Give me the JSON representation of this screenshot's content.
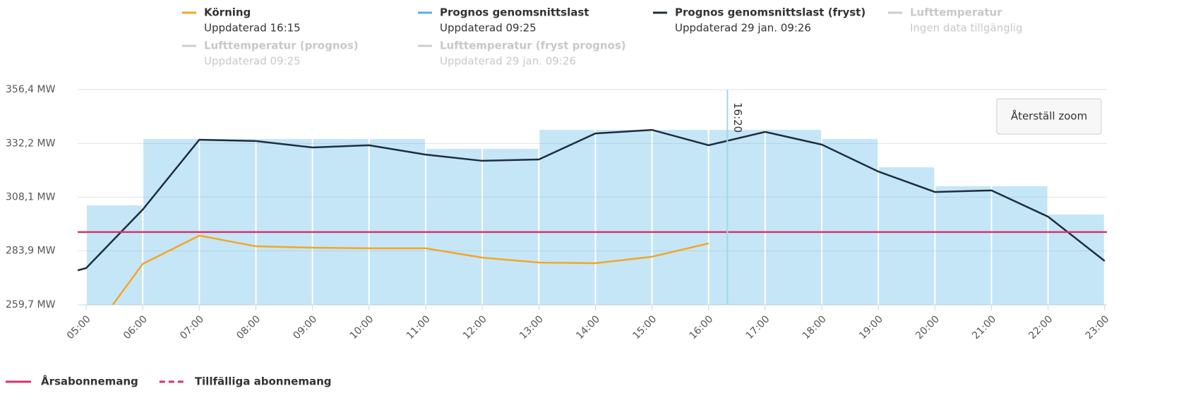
{
  "chart_data": {
    "type": "line",
    "xlim": [
      4.85,
      23.04
    ],
    "xticks": [
      {
        "value": 5,
        "label": "05:00"
      },
      {
        "value": 6,
        "label": "06:00"
      },
      {
        "value": 7,
        "label": "07:00"
      },
      {
        "value": 8,
        "label": "08:00"
      },
      {
        "value": 9,
        "label": "09:00"
      },
      {
        "value": 10,
        "label": "10:00"
      },
      {
        "value": 11,
        "label": "11:00"
      },
      {
        "value": 12,
        "label": "12:00"
      },
      {
        "value": 13,
        "label": "13:00"
      },
      {
        "value": 14,
        "label": "14:00"
      },
      {
        "value": 15,
        "label": "15:00"
      },
      {
        "value": 16,
        "label": "16:00"
      },
      {
        "value": 17,
        "label": "17:00"
      },
      {
        "value": 18,
        "label": "18:00"
      },
      {
        "value": 19,
        "label": "19:00"
      },
      {
        "value": 20,
        "label": "20:00"
      },
      {
        "value": 21,
        "label": "21:00"
      },
      {
        "value": 22,
        "label": "22:00"
      },
      {
        "value": 23,
        "label": "23:00"
      }
    ],
    "ylim": [
      259.7,
      356.4
    ],
    "yticks": [
      {
        "value": 259.7,
        "label": "259,7 MW"
      },
      {
        "value": 283.9,
        "label": "283,9 MW"
      },
      {
        "value": 308.1,
        "label": "308,1 MW"
      },
      {
        "value": 332.2,
        "label": "332,2 MW"
      },
      {
        "value": 356.4,
        "label": "356,4 MW"
      }
    ],
    "grid": true,
    "series": [
      {
        "name": "Körning",
        "note": "Uppdaterad 16:15",
        "color": "#f5a623",
        "type": "line",
        "visible": true,
        "x": [
          5.47,
          6,
          7,
          8,
          9,
          10,
          11,
          12,
          13,
          14,
          15,
          16
        ],
        "values": [
          259.7,
          278.1,
          290.8,
          286.0,
          285.4,
          285.1,
          285.1,
          280.9,
          278.7,
          278.4,
          281.3,
          287.3
        ]
      },
      {
        "name": "Prognos genomsnittslast",
        "note": "Uppdaterad 09:25",
        "color": "#4fb3e8",
        "type": "histogram",
        "visible": true,
        "bins": [
          5,
          6,
          7,
          8,
          9,
          10,
          11,
          12,
          13,
          14,
          15,
          16,
          17,
          18,
          19,
          20,
          21,
          22,
          23
        ],
        "values": [
          304.4,
          334.2,
          334.2,
          334.2,
          334.2,
          334.2,
          329.8,
          329.8,
          338.3,
          338.3,
          338.3,
          338.3,
          338.3,
          334.2,
          321.5,
          313.0,
          313.0,
          300.3
        ]
      },
      {
        "name": "Prognos genomsnittslast (fryst)",
        "note": "Uppdaterad 29 jan. 09:26",
        "color": "#1f2d3d",
        "type": "line",
        "visible": true,
        "x": [
          4.85,
          5,
          6,
          7,
          8,
          9,
          10,
          11,
          12,
          13,
          14,
          15,
          16,
          17,
          18,
          19,
          20,
          21,
          22,
          23
        ],
        "values": [
          275.2,
          276.2,
          302.5,
          333.9,
          333.3,
          330.4,
          331.4,
          327.2,
          324.4,
          325.0,
          336.7,
          338.3,
          331.4,
          337.4,
          331.7,
          319.6,
          310.4,
          311.1,
          299.3,
          279.4
        ]
      },
      {
        "name": "Lufttemperatur",
        "note": "Ingen data tillgänglig",
        "color": "#cccccc",
        "visible": false
      },
      {
        "name": "Lufttemperatur (prognos)",
        "note": "Uppdaterad 09:25",
        "color": "#cccccc",
        "visible": false
      },
      {
        "name": "Lufttemperatur (fryst prognos)",
        "note": "Uppdaterad 29 jan. 09:26",
        "color": "#cccccc",
        "visible": false
      }
    ],
    "thresholds": [
      {
        "name": "Årsabonnemang",
        "color": "#d6336c",
        "dashed": false,
        "value": 292.4
      },
      {
        "name": "Tillfälliga abonnemang",
        "color": "#d6336c",
        "dashed": true
      }
    ],
    "marker": {
      "x": 16.333,
      "label": "16:20",
      "color": "#9fd8e8"
    },
    "reset_button": "Återställ zoom"
  }
}
